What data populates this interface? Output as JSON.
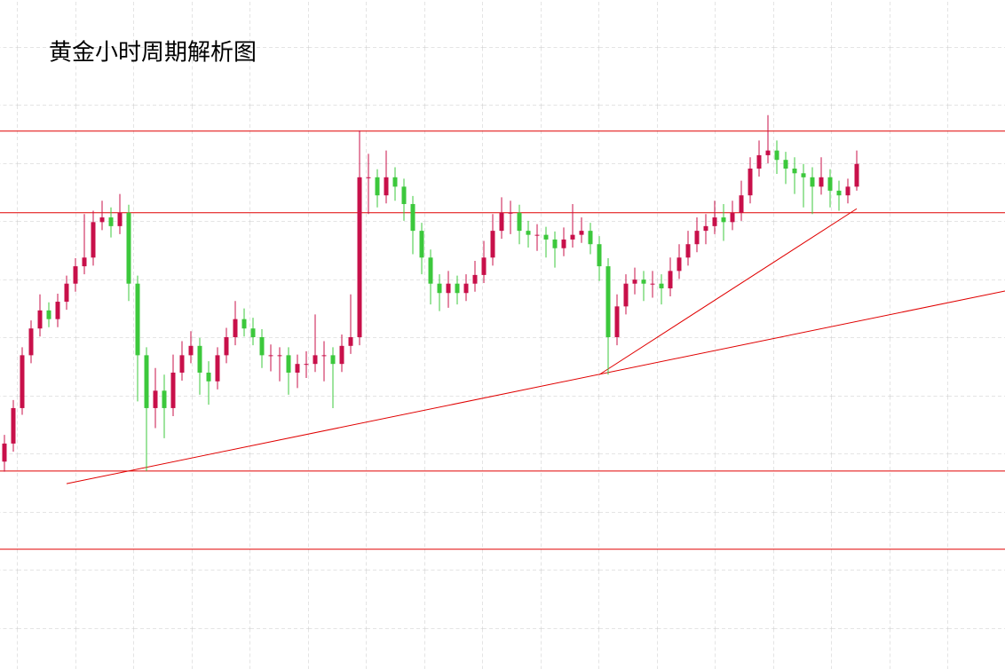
{
  "chart_data": {
    "type": "candlestick",
    "title": "黄金小时周期解析图",
    "xlim": [
      -0.5,
      112.7
    ],
    "ylim": [
      0,
      100
    ],
    "up_color": "#c8104a",
    "down_color": "#3cc83c",
    "line_color": "#e00000",
    "open": [
      31.0,
      33.7,
      39.0,
      46.9,
      50.9,
      53.6,
      52.3,
      54.9,
      57.6,
      60.2,
      61.5,
      66.8,
      67.5,
      66.2,
      68.2,
      57.6,
      46.9,
      39.0,
      41.6,
      39.0,
      44.3,
      46.9,
      48.3,
      44.3,
      43.0,
      46.9,
      49.6,
      52.3,
      50.9,
      49.6,
      46.9,
      46.9,
      46.9,
      44.3,
      45.6,
      45.6,
      46.9,
      46.9,
      45.6,
      48.3,
      49.6,
      73.5,
      73.5,
      70.8,
      73.5,
      72.1,
      69.5,
      65.5,
      61.5,
      57.6,
      56.2,
      57.6,
      56.2,
      57.6,
      58.9,
      61.5,
      65.5,
      68.2,
      68.2,
      65.5,
      64.9,
      64.9,
      64.2,
      62.9,
      64.2,
      64.9,
      65.5,
      63.5,
      60.2,
      49.6,
      54.2,
      57.6,
      58.2,
      57.6,
      57.6,
      56.9,
      59.5,
      61.5,
      63.5,
      65.5,
      66.2,
      67.5,
      66.8,
      68.2,
      70.8,
      74.8,
      76.8,
      77.5,
      76.1,
      74.8,
      74.1,
      73.5,
      72.1,
      73.5,
      71.5,
      70.8,
      72.1
    ],
    "high": [
      35.0,
      40.2,
      48.1,
      52.1,
      56.0,
      54.8,
      56.1,
      58.8,
      61.4,
      68.0,
      68.5,
      70.0,
      69.0,
      71.0,
      69.4,
      58.8,
      48.1,
      45.0,
      44.0,
      47.0,
      49.0,
      50.5,
      49.5,
      46.0,
      48.1,
      51.0,
      55.0,
      53.9,
      52.5,
      50.8,
      48.5,
      48.1,
      48.1,
      47.0,
      47.5,
      53.0,
      49.0,
      48.1,
      50.0,
      56.0,
      80.5,
      77.0,
      74.7,
      77.5,
      75.0,
      73.3,
      70.7,
      66.7,
      62.7,
      59.0,
      59.5,
      58.8,
      59.0,
      61.0,
      64.0,
      68.0,
      70.5,
      70.0,
      69.4,
      67.0,
      66.5,
      66.1,
      65.4,
      66.0,
      69.5,
      67.5,
      66.7,
      64.7,
      61.4,
      56.0,
      59.0,
      60.0,
      59.5,
      59.5,
      59.0,
      61.5,
      63.5,
      65.5,
      67.5,
      68.0,
      70.0,
      69.5,
      70.0,
      73.0,
      76.5,
      79.0,
      82.8,
      79.0,
      77.3,
      76.5,
      75.5,
      75.0,
      76.5,
      74.7,
      73.0,
      73.3,
      77.5
    ],
    "low": [
      29.5,
      32.5,
      38.0,
      45.7,
      49.7,
      51.1,
      51.1,
      53.7,
      56.4,
      59.0,
      60.3,
      65.6,
      64.5,
      65.0,
      55.0,
      40.0,
      29.6,
      36.0,
      34.5,
      37.8,
      43.1,
      45.7,
      41.0,
      39.5,
      41.8,
      45.7,
      48.4,
      49.7,
      48.4,
      45.0,
      44.5,
      43.0,
      41.0,
      42.0,
      43.5,
      44.4,
      43.0,
      39.0,
      44.4,
      47.1,
      48.4,
      68.0,
      69.0,
      69.6,
      70.0,
      67.0,
      62.0,
      59.0,
      54.5,
      53.5,
      54.0,
      54.5,
      55.0,
      56.4,
      57.7,
      60.3,
      64.3,
      65.0,
      63.5,
      63.0,
      62.5,
      61.5,
      60.0,
      61.7,
      63.0,
      63.7,
      62.0,
      58.0,
      44.0,
      48.4,
      53.0,
      56.0,
      55.0,
      55.5,
      54.5,
      55.7,
      58.3,
      60.3,
      62.3,
      63.5,
      65.0,
      64.0,
      65.6,
      67.0,
      69.6,
      73.6,
      75.6,
      74.0,
      72.5,
      71.0,
      69.0,
      68.0,
      70.9,
      69.0,
      68.5,
      69.6,
      71.5
    ],
    "close": [
      33.7,
      39.0,
      46.9,
      50.9,
      53.6,
      52.3,
      54.9,
      57.6,
      60.2,
      61.5,
      66.8,
      67.5,
      66.2,
      68.2,
      57.6,
      46.9,
      39.0,
      41.6,
      39.0,
      44.3,
      46.9,
      48.3,
      44.3,
      43.0,
      46.9,
      49.6,
      52.3,
      50.9,
      49.6,
      46.9,
      46.9,
      46.9,
      44.3,
      45.6,
      45.6,
      46.9,
      46.9,
      45.6,
      48.3,
      49.6,
      73.5,
      73.5,
      70.8,
      73.5,
      72.1,
      69.5,
      65.5,
      61.5,
      57.6,
      56.2,
      57.6,
      56.2,
      57.6,
      58.9,
      61.5,
      65.5,
      68.2,
      68.2,
      65.5,
      64.9,
      64.9,
      64.2,
      62.9,
      64.2,
      64.9,
      65.5,
      63.5,
      60.2,
      49.6,
      54.2,
      57.6,
      58.2,
      57.6,
      57.6,
      56.9,
      59.5,
      61.5,
      63.5,
      65.5,
      66.2,
      67.5,
      66.8,
      68.2,
      70.8,
      74.8,
      76.8,
      77.5,
      76.1,
      74.8,
      74.1,
      73.5,
      72.1,
      73.5,
      71.5,
      70.8,
      72.1,
      75.5
    ],
    "hlines": [
      80.4,
      68.2,
      29.6,
      17.9
    ],
    "trendlines": [
      {
        "x": [
          7.0,
          112.7
        ],
        "y": [
          27.7,
          56.5
        ]
      },
      {
        "x": [
          67.0,
          96.0
        ],
        "y": [
          44.0,
          68.8
        ]
      }
    ]
  }
}
